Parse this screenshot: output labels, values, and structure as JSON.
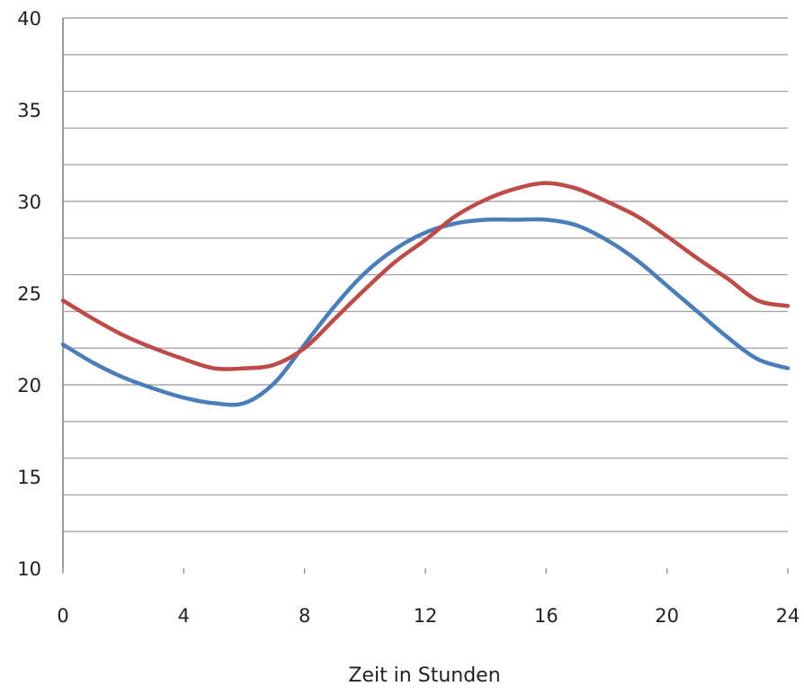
{
  "chart_data": {
    "type": "line",
    "title": "",
    "xlabel": "Zeit in Stunden",
    "ylabel": "",
    "xlim": [
      0,
      24
    ],
    "ylim": [
      10,
      40
    ],
    "x_ticks": [
      "0",
      "4",
      "8",
      "12",
      "16",
      "20",
      "24"
    ],
    "y_ticks": [
      "10",
      "15",
      "20",
      "25",
      "30",
      "35",
      "40"
    ],
    "grid": true,
    "legend": "none",
    "x": [
      0,
      1,
      2,
      3,
      4,
      5,
      6,
      7,
      8,
      9,
      10,
      11,
      12,
      13,
      14,
      15,
      16,
      17,
      18,
      19,
      20,
      21,
      22,
      23,
      24
    ],
    "series": [
      {
        "color": "#4a7ebb",
        "values": [
          22.2,
          21.2,
          20.4,
          19.8,
          19.3,
          19.0,
          19.0,
          20.1,
          22.2,
          24.3,
          26.1,
          27.4,
          28.3,
          28.8,
          29.0,
          29.0,
          29.0,
          28.7,
          27.9,
          26.8,
          25.4,
          24.0,
          22.6,
          21.4,
          20.9
        ]
      },
      {
        "color": "#be4b48",
        "values": [
          24.6,
          23.6,
          22.7,
          22.0,
          21.4,
          20.9,
          20.9,
          21.1,
          22.0,
          23.6,
          25.2,
          26.7,
          27.9,
          29.2,
          30.1,
          30.7,
          31.0,
          30.7,
          30.0,
          29.2,
          28.1,
          26.9,
          25.8,
          24.6,
          24.3
        ]
      }
    ]
  }
}
